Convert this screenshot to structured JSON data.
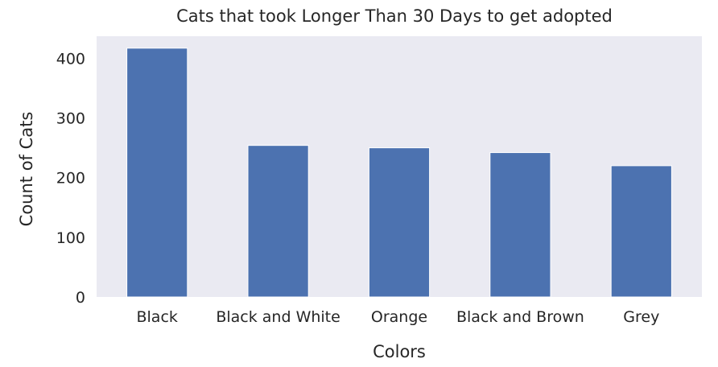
{
  "chart_data": {
    "type": "bar",
    "title": "Cats that took Longer Than 30 Days to get adopted",
    "xlabel": "Colors",
    "ylabel": "Count of Cats",
    "categories": [
      "Black",
      "Black and White",
      "Orange",
      "Black and Brown",
      "Grey"
    ],
    "values": [
      417,
      254,
      250,
      242,
      220
    ],
    "ylim": [
      0,
      437
    ],
    "yticks": [
      0,
      100,
      200,
      300,
      400
    ],
    "grid": false,
    "legend": "none",
    "colors": {
      "bar": "#4c72b0",
      "plot_background": "#eaeaf2",
      "text": "#262626"
    }
  }
}
